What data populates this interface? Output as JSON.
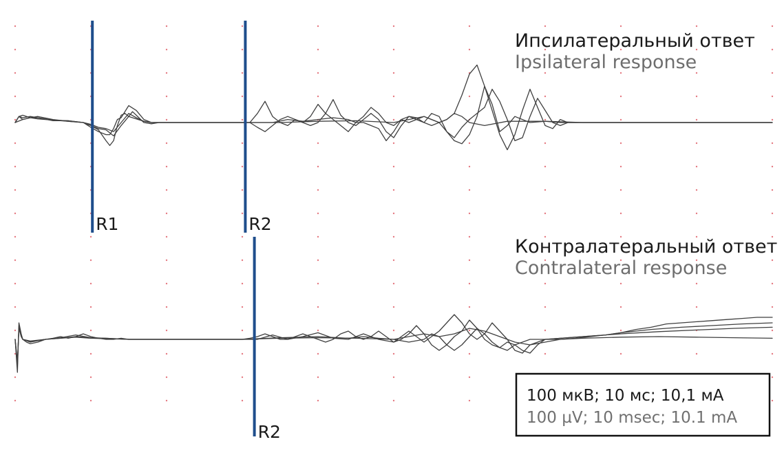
{
  "chart_data": {
    "type": "line",
    "colors": {
      "trace": "#3f3f3f",
      "marker": "#1f4e8c",
      "grid_dot": "#e57a82",
      "scale_box": "#111111"
    },
    "grid": true,
    "scale": {
      "line_ru": "100 мкВ; 10 мс; 10,1 мА",
      "line_en": "100 µV; 10 msec; 10.1 mA"
    },
    "panels": [
      {
        "title_ru": "Ипсилатеральный ответ",
        "title_en": "Ipsilateral response",
        "xlim": [
          0,
          100
        ],
        "ylim": [
          -1,
          1
        ],
        "markers": [
          {
            "label": "R1",
            "x": 10.2
          },
          {
            "label": "R2",
            "x": 30.4
          }
        ],
        "series": [
          {
            "x": [
              0,
              0.5,
              1,
              2,
              3,
              5,
              7,
              9,
              10,
              11,
              12,
              12.5,
              13,
              13.5,
              14,
              14.5,
              15,
              15.5,
              16,
              17,
              18,
              19,
              20,
              22,
              25,
              28,
              30,
              31,
              32,
              33,
              34,
              35,
              36,
              37,
              38,
              39,
              40,
              41,
              42,
              43,
              44,
              45,
              46,
              47,
              48,
              49,
              50,
              51,
              52,
              53,
              54,
              55,
              56,
              57,
              58,
              59,
              60,
              61,
              62,
              63,
              64,
              65,
              66,
              67,
              68,
              69,
              70,
              71,
              72,
              73,
              74,
              75,
              80,
              85,
              90,
              95,
              100
            ],
            "y": [
              0,
              0.1,
              0.12,
              0.08,
              0.1,
              0.05,
              0.02,
              0,
              -0.05,
              -0.12,
              -0.3,
              -0.38,
              -0.3,
              -0.05,
              0.12,
              0.15,
              0.1,
              0.18,
              0.12,
              0,
              -0.02,
              0,
              0,
              0,
              0,
              0,
              0,
              0,
              0.15,
              0.35,
              0.1,
              0,
              -0.05,
              0.05,
              0,
              0.1,
              0.3,
              0.15,
              0.05,
              -0.05,
              -0.15,
              0,
              0.1,
              0.25,
              0.15,
              0,
              -0.05,
              0.05,
              0,
              0.05,
              0.1,
              0.05,
              0,
              0.05,
              0.15,
              0.45,
              0.8,
              0.95,
              0.6,
              0.2,
              -0.2,
              -0.45,
              -0.2,
              0.2,
              0.55,
              0.25,
              -0.05,
              -0.1,
              0.05,
              0,
              0,
              0,
              0,
              0,
              0,
              0,
              0
            ]
          },
          {
            "x": [
              0,
              0.5,
              1,
              2,
              3,
              5,
              7,
              9,
              10,
              11,
              12,
              12.5,
              13,
              13.5,
              14,
              15,
              16,
              17,
              18,
              20,
              25,
              30,
              31,
              32,
              33,
              34,
              35,
              36,
              37,
              38,
              39,
              40,
              41,
              42,
              43,
              44,
              45,
              46,
              47,
              48,
              49,
              50,
              51,
              52,
              53,
              54,
              55,
              56,
              57,
              58,
              59,
              60,
              61,
              62,
              63,
              64,
              65,
              66,
              67,
              68,
              69,
              70,
              71,
              72,
              73,
              74,
              75,
              80,
              85,
              90,
              95,
              100
            ],
            "y": [
              0,
              0.1,
              0.08,
              0.1,
              0.08,
              0.03,
              0.03,
              0,
              -0.08,
              -0.15,
              -0.2,
              -0.2,
              -0.1,
              0.05,
              0.08,
              0.28,
              0.2,
              0.05,
              0,
              0,
              0,
              0,
              0,
              -0.08,
              -0.15,
              -0.05,
              0.05,
              0.1,
              0.05,
              0,
              -0.05,
              0,
              0.15,
              0.38,
              0.12,
              0,
              -0.05,
              0.05,
              0.15,
              0.05,
              -0.15,
              -0.25,
              -0.05,
              0.1,
              0.05,
              0,
              0.15,
              0.1,
              -0.15,
              -0.25,
              -0.08,
              0.05,
              0.15,
              0.25,
              0.55,
              0.35,
              0.05,
              -0.3,
              -0.25,
              0.1,
              0.4,
              0.2,
              0,
              -0.05,
              0,
              0,
              0,
              0,
              0,
              0,
              0,
              0
            ]
          },
          {
            "x": [
              0,
              0.5,
              1,
              2,
              3,
              5,
              7,
              9,
              10,
              11,
              12,
              13,
              14,
              15,
              16,
              17,
              18,
              20,
              25,
              30,
              32,
              34,
              36,
              38,
              40,
              42,
              44,
              45,
              46,
              47,
              48,
              49,
              50,
              51,
              52,
              53,
              54,
              55,
              56,
              57,
              58,
              59,
              60,
              61,
              62,
              63,
              64,
              65,
              66,
              67,
              68,
              70,
              72,
              75,
              80,
              85,
              90,
              95,
              100
            ],
            "y": [
              0,
              0.1,
              0.05,
              0.08,
              0.08,
              0.04,
              0.02,
              0,
              -0.05,
              -0.1,
              -0.12,
              -0.22,
              -0.05,
              0.1,
              0.06,
              0.02,
              0,
              0,
              0,
              0,
              0,
              0,
              0.05,
              0.02,
              0.05,
              0.08,
              0.05,
              0,
              0,
              -0.05,
              -0.1,
              -0.3,
              -0.15,
              0.05,
              0.1,
              0.08,
              0,
              -0.05,
              0,
              -0.15,
              -0.3,
              -0.35,
              -0.2,
              0.1,
              0.6,
              0.3,
              -0.15,
              -0.05,
              0.1,
              0.05,
              0,
              0.02,
              0,
              0,
              0,
              0,
              0,
              0,
              0
            ]
          },
          {
            "x": [
              0,
              1,
              2,
              3,
              5,
              7,
              9,
              10,
              11,
              12,
              13,
              14,
              15,
              16,
              17,
              18,
              20,
              25,
              30,
              35,
              40,
              45,
              50,
              52,
              54,
              55,
              56,
              57,
              58,
              59,
              60,
              62,
              65,
              70,
              75,
              80,
              90,
              100
            ],
            "y": [
              0,
              0.05,
              0.08,
              0.06,
              0.04,
              0.03,
              0,
              -0.03,
              -0.08,
              -0.1,
              -0.15,
              0,
              0.15,
              0.08,
              0.02,
              0,
              0,
              0,
              0,
              0,
              0.02,
              0.03,
              0,
              0.05,
              0.1,
              0.05,
              0,
              0.05,
              0.15,
              0.1,
              0,
              -0.05,
              0.02,
              0.02,
              0,
              0,
              0,
              0
            ]
          }
        ]
      },
      {
        "title_ru": "Контралатеральный ответ",
        "title_en": "Contralateral response",
        "xlim": [
          0,
          100
        ],
        "ylim": [
          -1,
          1
        ],
        "markers": [
          {
            "label": "R2",
            "x": 31.6
          }
        ],
        "series": [
          {
            "x": [
              0,
              0.3,
              0.5,
              0.8,
              1,
              1.5,
              2,
              3,
              4,
              5,
              6,
              7,
              8,
              9,
              10,
              11,
              12,
              13,
              14,
              15,
              20,
              25,
              30,
              31,
              32,
              33,
              34,
              35,
              36,
              37,
              38,
              39,
              40,
              41,
              42,
              43,
              44,
              45,
              46,
              47,
              48,
              49,
              50,
              51,
              52,
              53,
              54,
              55,
              56,
              57,
              58,
              59,
              60,
              61,
              62,
              63,
              64,
              65,
              66,
              67,
              68,
              69,
              70,
              72,
              74,
              76,
              78,
              80,
              82,
              84,
              86,
              88,
              90,
              92,
              94,
              96,
              98,
              100
            ],
            "y": [
              0,
              -0.6,
              0.3,
              0.1,
              0,
              -0.05,
              -0.08,
              -0.05,
              0,
              0.02,
              0.05,
              0.02,
              0.05,
              0.1,
              0.05,
              0.02,
              0,
              0,
              0.02,
              0,
              0,
              0,
              0,
              0.02,
              0.05,
              0.1,
              0.05,
              0,
              0,
              0.05,
              0.1,
              0.05,
              0,
              -0.05,
              0,
              0.1,
              0.15,
              0.05,
              0,
              0.05,
              0.15,
              0.05,
              -0.05,
              0,
              0.1,
              0.25,
              0.1,
              -0.1,
              -0.2,
              -0.1,
              0.05,
              0.15,
              0.35,
              0.2,
              0,
              -0.1,
              -0.15,
              -0.05,
              -0.1,
              -0.2,
              -0.25,
              -0.1,
              0,
              0,
              0.02,
              0.05,
              0.08,
              0.12,
              0.18,
              0.22,
              0.28,
              0.3,
              0.32,
              0.34,
              0.36,
              0.38,
              0.4,
              0.4
            ]
          },
          {
            "x": [
              0,
              0.3,
              0.5,
              0.8,
              1,
              2,
              4,
              6,
              8,
              10,
              12,
              15,
              20,
              25,
              30,
              32,
              34,
              36,
              38,
              40,
              42,
              44,
              46,
              48,
              50,
              51,
              52,
              53,
              54,
              55,
              56,
              57,
              58,
              59,
              60,
              61,
              62,
              63,
              64,
              65,
              66,
              67,
              68,
              70,
              72,
              74,
              76,
              78,
              80,
              84,
              88,
              92,
              96,
              100
            ],
            "y": [
              0,
              -0.5,
              0.25,
              0.08,
              0,
              -0.05,
              0,
              0.03,
              0.08,
              0.03,
              0.02,
              0,
              0,
              0,
              0,
              0,
              0.08,
              0,
              0.05,
              0.12,
              0.02,
              0,
              0.1,
              0,
              -0.05,
              0.05,
              0.15,
              0.05,
              -0.05,
              0.05,
              0.15,
              0.3,
              0.45,
              0.3,
              0.1,
              0,
              0.1,
              0.3,
              0.15,
              0,
              -0.2,
              -0.25,
              -0.1,
              0,
              0.02,
              0.04,
              0.06,
              0.08,
              0.12,
              0.18,
              0.22,
              0.25,
              0.28,
              0.3
            ]
          },
          {
            "x": [
              0,
              0.3,
              0.5,
              0.8,
              1,
              2,
              4,
              6,
              8,
              10,
              12,
              15,
              20,
              25,
              30,
              35,
              40,
              44,
              46,
              48,
              50,
              52,
              54,
              55,
              56,
              57,
              58,
              59,
              60,
              61,
              62,
              63,
              64,
              65,
              66,
              68,
              70,
              72,
              75,
              80,
              85,
              90,
              95,
              100
            ],
            "y": [
              0,
              -0.45,
              0.2,
              0.06,
              0,
              -0.04,
              0,
              0.02,
              0.05,
              0.03,
              0.02,
              0,
              0,
              0,
              0,
              0.03,
              0.05,
              0.02,
              0.05,
              0.02,
              0,
              -0.05,
              0,
              0.1,
              0.05,
              -0.1,
              -0.2,
              -0.1,
              0.05,
              0.2,
              0.1,
              -0.05,
              -0.15,
              -0.2,
              -0.1,
              0,
              0,
              0.02,
              0.05,
              0.1,
              0.14,
              0.17,
              0.2,
              0.22
            ]
          },
          {
            "x": [
              0,
              0.3,
              0.5,
              0.8,
              1,
              2,
              4,
              6,
              8,
              10,
              15,
              20,
              25,
              30,
              35,
              40,
              45,
              50,
              52,
              54,
              56,
              58,
              60,
              62,
              64,
              66,
              68,
              70,
              72,
              75,
              80,
              85,
              90,
              95,
              100
            ],
            "y": [
              0,
              -0.4,
              0.2,
              0.05,
              0,
              -0.03,
              0,
              0.02,
              0.04,
              0.02,
              0,
              0,
              0,
              0,
              0.02,
              0.03,
              0.02,
              0,
              0.05,
              0.1,
              0.05,
              0.1,
              0.2,
              0.15,
              0.05,
              -0.05,
              -0.1,
              -0.05,
              0,
              0.02,
              0.04,
              0.05,
              0.04,
              0.03,
              0.02
            ]
          }
        ]
      }
    ]
  }
}
